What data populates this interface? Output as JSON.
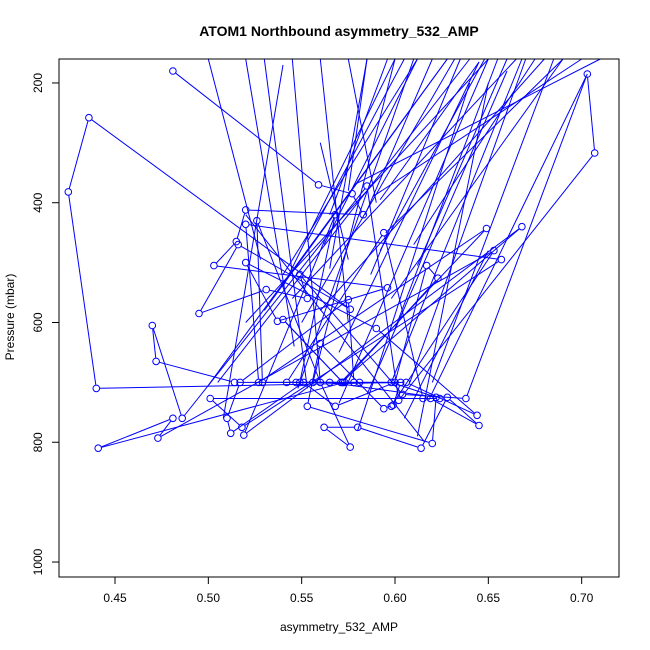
{
  "chart_data": {
    "type": "line",
    "title": "ATOM1 Northbound asymmetry_532_AMP",
    "xlabel": "asymmetry_532_AMP",
    "ylabel": "Pressure (mbar)",
    "xlim": [
      0.42,
      0.72
    ],
    "ylim": [
      1025,
      160
    ],
    "y_inverted": true,
    "grid": false,
    "x_ticks": [
      "0.45",
      "0.50",
      "0.55",
      "0.60",
      "0.65",
      "0.70"
    ],
    "y_ticks": [
      "200",
      "400",
      "600",
      "800",
      "1000"
    ],
    "series_color": "#0000ff",
    "series": [
      {
        "x": [
          0.481,
          0.559,
          0.577,
          0.583,
          0.52,
          0.515,
          0.503,
          0.596,
          0.537,
          0.52,
          0.59,
          0.644,
          0.606,
          0.44,
          0.425,
          0.436,
          0.576,
          0.516,
          0.495,
          0.531,
          0.553,
          0.549,
          0.604,
          0.638,
          0.703,
          0.707,
          0.602,
          0.585,
          0.486,
          0.47,
          0.472,
          0.514,
          0.603,
          0.599,
          0.594,
          0.56,
          0.553,
          0.62,
          0.622,
          0.565,
          0.556,
          0.547,
          0.578,
          0.575,
          0.517,
          0.51,
          0.512,
          0.551,
          0.568,
          0.6,
          0.617,
          0.623,
          0.572,
          0.54,
          0.572,
          0.529,
          0.526,
          0.56,
          0.576,
          0.562,
          0.58,
          0.614,
          0.628,
          0.645,
          0.619,
          0.501,
          0.518,
          0.657,
          0.52,
          0.527,
          0.649,
          0.571,
          0.668,
          0.519,
          0.568,
          0.549,
          0.542,
          0.594,
          0.615,
          0.624,
          0.598,
          0.581,
          0.573,
          0.441,
          0.481,
          0.473,
          0.653,
          0.598
        ],
        "y": [
          180,
          370,
          385,
          420,
          412,
          465,
          505,
          542,
          598,
          500,
          610,
          755,
          700,
          710,
          382,
          258,
          578,
          470,
          585,
          545,
          560,
          520,
          720,
          727,
          185,
          317,
          730,
          372,
          760,
          605,
          665,
          700,
          700,
          738,
          744,
          635,
          740,
          802,
          725,
          700,
          700,
          700,
          700,
          562,
          700,
          760,
          785,
          700,
          740,
          700,
          505,
          526,
          700,
          595,
          700,
          700,
          430,
          700,
          808,
          775,
          775,
          810,
          725,
          772,
          727,
          727,
          775,
          495,
          436,
          700,
          443,
          700,
          440,
          788,
          420,
          700,
          700,
          450,
          727,
          727,
          700,
          700,
          700,
          810,
          760,
          793,
          480,
          740
        ]
      }
    ],
    "ink_lines": [
      [
        0.578,
        370,
        0.71,
        160
      ],
      [
        0.588,
        390,
        0.7,
        160
      ],
      [
        0.595,
        450,
        0.69,
        160
      ],
      [
        0.56,
        580,
        0.68,
        160
      ],
      [
        0.545,
        560,
        0.665,
        160
      ],
      [
        0.52,
        600,
        0.65,
        160
      ],
      [
        0.505,
        700,
        0.64,
        160
      ],
      [
        0.5,
        705,
        0.628,
        160
      ],
      [
        0.54,
        520,
        0.612,
        160
      ],
      [
        0.553,
        465,
        0.605,
        160
      ],
      [
        0.565,
        420,
        0.596,
        160
      ],
      [
        0.575,
        380,
        0.585,
        160
      ],
      [
        0.59,
        400,
        0.575,
        160
      ],
      [
        0.575,
        600,
        0.56,
        160
      ],
      [
        0.56,
        700,
        0.545,
        160
      ],
      [
        0.553,
        710,
        0.53,
        160
      ],
      [
        0.546,
        640,
        0.52,
        160
      ],
      [
        0.528,
        495,
        0.5,
        160
      ],
      [
        0.556,
        700,
        0.6,
        160
      ],
      [
        0.587,
        520,
        0.635,
        160
      ],
      [
        0.6,
        610,
        0.655,
        160
      ],
      [
        0.608,
        700,
        0.67,
        160
      ],
      [
        0.612,
        505,
        0.66,
        160
      ],
      [
        0.592,
        480,
        0.648,
        160
      ],
      [
        0.598,
        560,
        0.69,
        160
      ],
      [
        0.618,
        730,
        0.703,
        185
      ],
      [
        0.57,
        735,
        0.65,
        160
      ],
      [
        0.584,
        420,
        0.62,
        160
      ],
      [
        0.562,
        470,
        0.612,
        160
      ],
      [
        0.55,
        600,
        0.632,
        160
      ],
      [
        0.61,
        470,
        0.675,
        160
      ],
      [
        0.592,
        395,
        0.645,
        165
      ],
      [
        0.565,
        510,
        0.585,
        160
      ],
      [
        0.54,
        540,
        0.6,
        160
      ],
      [
        0.53,
        580,
        0.628,
        160
      ],
      [
        0.585,
        720,
        0.66,
        180
      ],
      [
        0.57,
        650,
        0.645,
        165
      ],
      [
        0.548,
        710,
        0.61,
        160
      ],
      [
        0.598,
        700,
        0.668,
        160
      ],
      [
        0.58,
        780,
        0.64,
        200
      ],
      [
        0.62,
        700,
        0.685,
        160
      ],
      [
        0.575,
        495,
        0.56,
        300
      ],
      [
        0.616,
        800,
        0.52,
        420
      ],
      [
        0.508,
        760,
        0.54,
        170
      ],
      [
        0.605,
        760,
        0.65,
        480
      ],
      [
        0.612,
        790,
        0.65,
        200
      ]
    ]
  }
}
